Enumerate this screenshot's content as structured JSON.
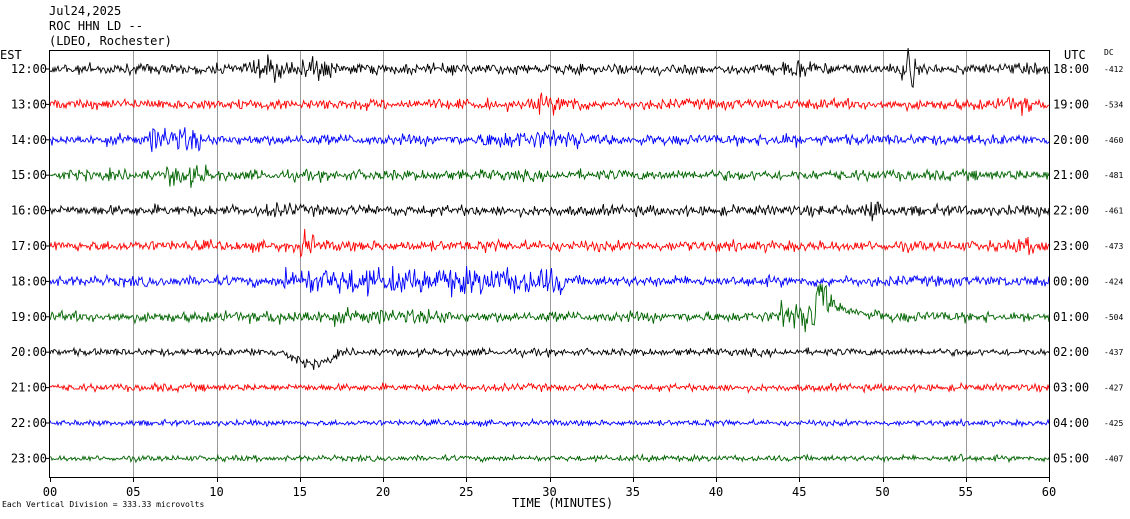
{
  "header": {
    "date": "Jul24,2025",
    "station": "ROC HHN LD --",
    "network": "(LDEO, Rochester)"
  },
  "left_axis_label": "EST",
  "right_axis_label": "UTC",
  "offset_label": "DC",
  "footer": {
    "scale_note": "Each Vertical Division = 333.33 microvolts"
  },
  "colors": {
    "trace_cycle": [
      "#000000",
      "#ff0000",
      "#0000ff",
      "#006400"
    ],
    "grid": "#808080",
    "frame": "#000000"
  },
  "chart_data": {
    "type": "line",
    "subtype": "helicorder",
    "xlabel": "TIME (MINUTES)",
    "xlim": [
      0,
      60
    ],
    "xticks": [
      "00",
      "05",
      "10",
      "15",
      "20",
      "25",
      "30",
      "35",
      "40",
      "45",
      "50",
      "55",
      "60"
    ],
    "grid": "vertical at each 5 minutes",
    "rows": [
      {
        "est": "12:00",
        "utc": "18:00",
        "dc": "-412"
      },
      {
        "est": "13:00",
        "utc": "19:00",
        "dc": "-534"
      },
      {
        "est": "14:00",
        "utc": "20:00",
        "dc": "-460"
      },
      {
        "est": "15:00",
        "utc": "21:00",
        "dc": "-481"
      },
      {
        "est": "16:00",
        "utc": "22:00",
        "dc": "-461"
      },
      {
        "est": "17:00",
        "utc": "23:00",
        "dc": "-473"
      },
      {
        "est": "18:00",
        "utc": "00:00",
        "dc": "-424"
      },
      {
        "est": "19:00",
        "utc": "01:00",
        "dc": "-504"
      },
      {
        "est": "20:00",
        "utc": "02:00",
        "dc": "-437"
      },
      {
        "est": "21:00",
        "utc": "03:00",
        "dc": "-427"
      },
      {
        "est": "22:00",
        "utc": "04:00",
        "dc": "-425"
      },
      {
        "est": "23:00",
        "utc": "05:00",
        "dc": "-407"
      }
    ]
  }
}
